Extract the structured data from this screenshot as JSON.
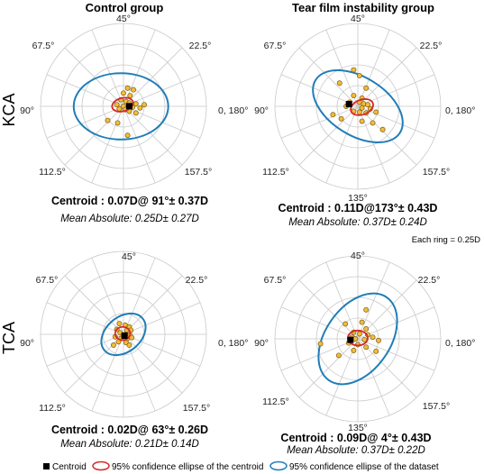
{
  "figure": {
    "column_titles": [
      "Control group",
      "Tear film instability group"
    ],
    "row_labels": [
      "KCA",
      "TCA"
    ],
    "ring_note": "Each ring = 0.25D",
    "legend": {
      "centroid": "Centroid",
      "centroid_ellipse": "95% confidence ellipse of  the centroid",
      "dataset_ellipse": "95% confidence ellipse of the dataset"
    }
  },
  "chart_data": [
    {
      "type": "scatter",
      "id": "kca-control",
      "polar": true,
      "title": "Control group",
      "row": "KCA",
      "ring_step_D": 0.25,
      "ring_count": 4,
      "angle_labels": [
        "45°",
        "22.5°",
        "0, 180°",
        "157.5°",
        "112.5°",
        "90°",
        "67.5°"
      ],
      "centroid_text": "Centroid : 0.07D@ 91°± 0.37D",
      "mean_text": "Mean Absolute: 0.25D± 0.27D",
      "centroid": {
        "magnitude_D": 0.07,
        "axis_deg": 91
      },
      "points": [
        [
          0.12,
          -0.2
        ],
        [
          0.05,
          -0.22
        ],
        [
          0.0,
          -0.16
        ],
        [
          0.08,
          -0.13
        ],
        [
          -0.03,
          -0.08
        ],
        [
          0.03,
          -0.06
        ],
        [
          0.07,
          -0.04
        ],
        [
          0.15,
          -0.03
        ],
        [
          0.25,
          -0.02
        ],
        [
          -0.08,
          -0.02
        ],
        [
          0.0,
          0.0
        ],
        [
          0.05,
          0.01
        ],
        [
          0.11,
          0.01
        ],
        [
          0.2,
          0.02
        ],
        [
          -0.05,
          0.03
        ],
        [
          0.02,
          0.04
        ],
        [
          0.07,
          0.06
        ],
        [
          0.15,
          0.08
        ],
        [
          -0.19,
          0.17
        ],
        [
          -0.07,
          0.2
        ],
        [
          0.05,
          0.35
        ]
      ],
      "centroid_ellipse": {
        "cx": -0.01,
        "cy": -0.02,
        "rx": 0.13,
        "ry": 0.08,
        "rotation_deg": -15
      },
      "dataset_ellipse": {
        "cx": -0.03,
        "cy": 0.0,
        "rx": 0.57,
        "ry": 0.4,
        "rotation_deg": 0
      }
    },
    {
      "type": "scatter",
      "id": "kca-tear",
      "polar": true,
      "title": "Tear film instability group",
      "row": "KCA",
      "ring_step_D": 0.25,
      "ring_count": 4,
      "angle_labels": [
        "45°",
        "22.5°",
        "0, 180°",
        "157.5°",
        "135°",
        "112.5°",
        "90°",
        "67.5°"
      ],
      "centroid_text": "Centroid : 0.11D@173°± 0.43D",
      "mean_text": "Mean Absolute: 0.37D± 0.24D",
      "centroid": {
        "magnitude_D": 0.11,
        "axis_deg": 173
      },
      "points": [
        [
          -0.05,
          -0.44
        ],
        [
          0.02,
          -0.37
        ],
        [
          -0.22,
          -0.28
        ],
        [
          0.1,
          -0.22
        ],
        [
          -0.05,
          -0.13
        ],
        [
          0.05,
          -0.1
        ],
        [
          -0.1,
          -0.05
        ],
        [
          0.02,
          -0.05
        ],
        [
          0.07,
          -0.03
        ],
        [
          0.12,
          -0.02
        ],
        [
          -0.14,
          0.0
        ],
        [
          0.05,
          0.02
        ],
        [
          0.15,
          0.03
        ],
        [
          -0.05,
          0.06
        ],
        [
          0.02,
          0.07
        ],
        [
          0.1,
          0.08
        ],
        [
          0.22,
          0.07
        ],
        [
          -0.3,
          0.1
        ],
        [
          -0.2,
          0.15
        ],
        [
          0.05,
          0.18
        ],
        [
          0.18,
          0.2
        ],
        [
          0.3,
          0.28
        ]
      ],
      "centroid_ellipse": {
        "cx": 0.05,
        "cy": 0.01,
        "rx": 0.14,
        "ry": 0.09,
        "rotation_deg": -20
      },
      "dataset_ellipse": {
        "cx": 0.0,
        "cy": 0.0,
        "rx": 0.6,
        "ry": 0.35,
        "rotation_deg": 32
      }
    },
    {
      "type": "scatter",
      "id": "tca-control",
      "polar": true,
      "title": "",
      "row": "TCA",
      "ring_step_D": 0.25,
      "ring_count": 4,
      "angle_labels": [
        "45°",
        "22.5°",
        "0, 180°",
        "157.5°",
        "112.5°",
        "90°",
        "67.5°"
      ],
      "centroid_text": "Centroid : 0.02D@ 63°± 0.26D",
      "mean_text": "Mean Absolute: 0.21D± 0.14D",
      "centroid": {
        "magnitude_D": 0.02,
        "axis_deg": 63
      },
      "points": [
        [
          -0.05,
          -0.13
        ],
        [
          0.02,
          -0.11
        ],
        [
          0.07,
          -0.09
        ],
        [
          -0.08,
          -0.06
        ],
        [
          0.04,
          -0.05
        ],
        [
          0.09,
          -0.05
        ],
        [
          -0.04,
          -0.02
        ],
        [
          0.03,
          0.0
        ],
        [
          0.08,
          0.01
        ],
        [
          -0.1,
          0.03
        ],
        [
          -0.03,
          0.05
        ],
        [
          0.04,
          0.06
        ],
        [
          0.1,
          0.04
        ],
        [
          -0.06,
          0.09
        ],
        [
          0.03,
          0.1
        ],
        [
          0.07,
          0.13
        ],
        [
          -0.12,
          0.13
        ]
      ],
      "centroid_ellipse": {
        "cx": -0.01,
        "cy": -0.01,
        "rx": 0.09,
        "ry": 0.08,
        "rotation_deg": 0
      },
      "dataset_ellipse": {
        "cx": 0.0,
        "cy": 0.0,
        "rx": 0.3,
        "ry": 0.21,
        "rotation_deg": -40
      }
    },
    {
      "type": "scatter",
      "id": "tca-tear",
      "polar": true,
      "title": "",
      "row": "TCA",
      "ring_step_D": 0.25,
      "ring_count": 4,
      "angle_labels": [
        "45°",
        "22.5°",
        "0, 180°",
        "157.5°",
        "135°",
        "112.5°",
        "90°",
        "67.5°"
      ],
      "centroid_text": "Centroid : 0.09D@ 4°± 0.43D",
      "mean_text": "Mean Absolute: 0.37D± 0.22D",
      "centroid": {
        "magnitude_D": 0.09,
        "axis_deg": 4
      },
      "points": [
        [
          0.1,
          -0.35
        ],
        [
          0.05,
          -0.2
        ],
        [
          -0.15,
          -0.18
        ],
        [
          0.1,
          -0.12
        ],
        [
          -0.05,
          -0.08
        ],
        [
          0.02,
          -0.06
        ],
        [
          0.12,
          -0.05
        ],
        [
          0.18,
          -0.02
        ],
        [
          -0.07,
          -0.02
        ],
        [
          -0.03,
          0.0
        ],
        [
          0.08,
          0.01
        ],
        [
          0.25,
          0.02
        ],
        [
          -0.11,
          0.05
        ],
        [
          0.0,
          0.07
        ],
        [
          0.1,
          0.1
        ],
        [
          -0.05,
          0.14
        ],
        [
          0.22,
          0.15
        ],
        [
          -0.45,
          0.06
        ],
        [
          -0.23,
          0.2
        ]
      ],
      "centroid_ellipse": {
        "cx": 0.0,
        "cy": -0.01,
        "rx": 0.12,
        "ry": 0.09,
        "rotation_deg": 0
      },
      "dataset_ellipse": {
        "cx": 0.0,
        "cy": 0.0,
        "rx": 0.61,
        "ry": 0.39,
        "rotation_deg": -55
      }
    }
  ]
}
